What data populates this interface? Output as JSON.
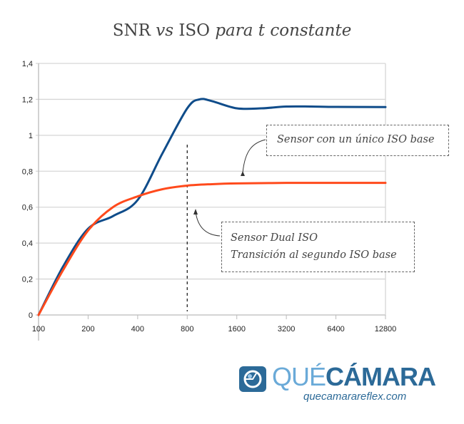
{
  "chart_data": {
    "type": "line",
    "title": "SNR vs ISO para t constante",
    "title_parts": {
      "plain": "SNR",
      "vs": "vs",
      "iso": "ISO",
      "italic": "para t constante"
    },
    "xlabel": "",
    "ylabel": "",
    "x_scale": "log2",
    "x_ticks": [
      "100",
      "200",
      "400",
      "800",
      "1600",
      "3200",
      "6400",
      "12800"
    ],
    "y_ticks": [
      "0",
      "0,2",
      "0,4",
      "0,6",
      "0,8",
      "1",
      "1,2",
      "1,4"
    ],
    "ylim": [
      0,
      1.4
    ],
    "xlim": [
      100,
      12800
    ],
    "grid": true,
    "series": [
      {
        "color": "#0f4c8a",
        "x": [
          100,
          141,
          200,
          283,
          400,
          566,
          800,
          950,
          1131,
          1600,
          2263,
          3200,
          4525,
          6400,
          12800
        ],
        "y": [
          0,
          0.27,
          0.48,
          0.55,
          0.64,
          0.9,
          1.15,
          1.2,
          1.19,
          1.15,
          1.15,
          1.16,
          1.16,
          1.158,
          1.157
        ]
      },
      {
        "color": "#ff4a1c",
        "x": [
          100,
          141,
          200,
          283,
          400,
          566,
          800,
          1131,
          1600,
          3200,
          6400,
          12800
        ],
        "y": [
          0,
          0.25,
          0.47,
          0.6,
          0.66,
          0.7,
          0.72,
          0.728,
          0.732,
          0.735,
          0.735,
          0.735
        ]
      }
    ],
    "marker_line_x": 800,
    "annotations": [
      {
        "text": "Sensor con un único ISO base"
      },
      {
        "line1": "Sensor Dual ISO",
        "line2": "Transición al segundo ISO base"
      }
    ]
  },
  "logo": {
    "que": "QUÉ",
    "camara": "CÁMARA",
    "url": "quecamarareflex.com"
  }
}
